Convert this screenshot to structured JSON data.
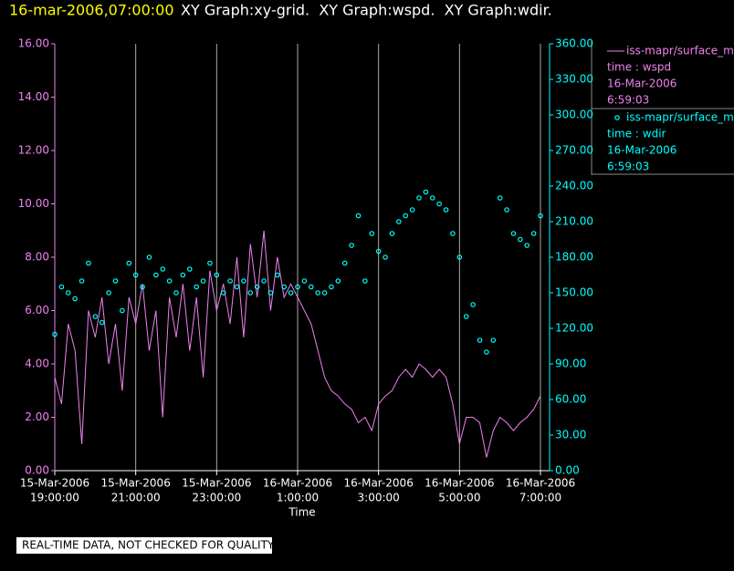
{
  "chart_data": {
    "type": "line",
    "title_time": "16-mar-2006,07:00:00",
    "title": "XY Graph:xy-grid.  XY Graph:wspd.  XY Graph:wdir.",
    "xlabel": "Time",
    "note": "REAL-TIME DATA, NOT CHECKED FOR QUALITY",
    "grid": true,
    "xlim": [
      "2006-03-15T19:00",
      "2006-03-16T07:00"
    ],
    "xticks": [
      {
        "value": "2006-03-15T19:00",
        "label": [
          "15-Mar-2006",
          "19:00:00"
        ]
      },
      {
        "value": "2006-03-15T21:00",
        "label": [
          "15-Mar-2006",
          "21:00:00"
        ]
      },
      {
        "value": "2006-03-15T23:00",
        "label": [
          "15-Mar-2006",
          "23:00:00"
        ]
      },
      {
        "value": "2006-03-16T01:00",
        "label": [
          "16-Mar-2006",
          "1:00:00"
        ]
      },
      {
        "value": "2006-03-16T03:00",
        "label": [
          "16-Mar-2006",
          "3:00:00"
        ]
      },
      {
        "value": "2006-03-16T05:00",
        "label": [
          "16-Mar-2006",
          "5:00:00"
        ]
      },
      {
        "value": "2006-03-16T07:00",
        "label": [
          "16-Mar-2006",
          "7:00:00"
        ]
      }
    ],
    "ylim": [
      0,
      16
    ],
    "yticks": [
      {
        "value": 0,
        "label": "0.00"
      },
      {
        "value": 2,
        "label": "2.00"
      },
      {
        "value": 4,
        "label": "4.00"
      },
      {
        "value": 6,
        "label": "6.00"
      },
      {
        "value": 8,
        "label": "8.00"
      },
      {
        "value": 10,
        "label": "10.00"
      },
      {
        "value": 12,
        "label": "12.00"
      },
      {
        "value": 14,
        "label": "14.00"
      },
      {
        "value": 16,
        "label": "16.00"
      }
    ],
    "y2lim": [
      0,
      360
    ],
    "y2ticks": [
      {
        "value": 0,
        "label": "0.00"
      },
      {
        "value": 30,
        "label": "30.00"
      },
      {
        "value": 60,
        "label": "60.00"
      },
      {
        "value": 90,
        "label": "90.00"
      },
      {
        "value": 120,
        "label": "120.00"
      },
      {
        "value": 150,
        "label": "150.00"
      },
      {
        "value": 180,
        "label": "180.00"
      },
      {
        "value": 210,
        "label": "210.00"
      },
      {
        "value": 240,
        "label": "240.00"
      },
      {
        "value": 270,
        "label": "270.00"
      },
      {
        "value": 300,
        "label": "300.00"
      },
      {
        "value": 330,
        "label": "330.00"
      },
      {
        "value": 360,
        "label": "360.00"
      }
    ],
    "x": [
      "2006-03-15T19:00",
      "2006-03-15T19:10",
      "2006-03-15T19:20",
      "2006-03-15T19:30",
      "2006-03-15T19:40",
      "2006-03-15T19:50",
      "2006-03-15T20:00",
      "2006-03-15T20:10",
      "2006-03-15T20:20",
      "2006-03-15T20:30",
      "2006-03-15T20:40",
      "2006-03-15T20:50",
      "2006-03-15T21:00",
      "2006-03-15T21:10",
      "2006-03-15T21:20",
      "2006-03-15T21:30",
      "2006-03-15T21:40",
      "2006-03-15T21:50",
      "2006-03-15T22:00",
      "2006-03-15T22:10",
      "2006-03-15T22:20",
      "2006-03-15T22:30",
      "2006-03-15T22:40",
      "2006-03-15T22:50",
      "2006-03-15T23:00",
      "2006-03-15T23:10",
      "2006-03-15T23:20",
      "2006-03-15T23:30",
      "2006-03-15T23:40",
      "2006-03-15T23:50",
      "2006-03-16T00:00",
      "2006-03-16T00:10",
      "2006-03-16T00:20",
      "2006-03-16T00:30",
      "2006-03-16T00:40",
      "2006-03-16T00:50",
      "2006-03-16T01:00",
      "2006-03-16T01:10",
      "2006-03-16T01:20",
      "2006-03-16T01:30",
      "2006-03-16T01:40",
      "2006-03-16T01:50",
      "2006-03-16T02:00",
      "2006-03-16T02:10",
      "2006-03-16T02:20",
      "2006-03-16T02:30",
      "2006-03-16T02:40",
      "2006-03-16T02:50",
      "2006-03-16T03:00",
      "2006-03-16T03:10",
      "2006-03-16T03:20",
      "2006-03-16T03:30",
      "2006-03-16T03:40",
      "2006-03-16T03:50",
      "2006-03-16T04:00",
      "2006-03-16T04:10",
      "2006-03-16T04:20",
      "2006-03-16T04:30",
      "2006-03-16T04:40",
      "2006-03-16T04:50",
      "2006-03-16T05:00",
      "2006-03-16T05:10",
      "2006-03-16T05:20",
      "2006-03-16T05:30",
      "2006-03-16T05:40",
      "2006-03-16T05:50",
      "2006-03-16T06:00",
      "2006-03-16T06:10",
      "2006-03-16T06:20",
      "2006-03-16T06:30",
      "2006-03-16T06:40",
      "2006-03-16T06:50",
      "2006-03-16T07:00"
    ],
    "series": [
      {
        "name": "iss-mapr/surface_m",
        "legend_text": [
          "time : wspd",
          "16-Mar-2006",
          "6:59:03"
        ],
        "color": "#ee82ee",
        "style": "line",
        "values": [
          3.5,
          2.5,
          5.5,
          4.5,
          1.0,
          6.0,
          5.0,
          6.5,
          4.0,
          5.5,
          3.0,
          6.5,
          5.5,
          7.0,
          4.5,
          6.0,
          2.0,
          6.5,
          5.0,
          7.0,
          4.5,
          6.5,
          3.5,
          7.5,
          6.0,
          7.0,
          5.5,
          8.0,
          5.0,
          8.5,
          6.5,
          9.0,
          6.0,
          8.0,
          6.5,
          7.0,
          6.5,
          6.0,
          5.5,
          4.5,
          3.5,
          3.0,
          2.8,
          2.5,
          2.3,
          1.8,
          2.0,
          1.5,
          2.5,
          2.8,
          3.0,
          3.5,
          3.8,
          3.5,
          4.0,
          3.8,
          3.5,
          3.8,
          3.5,
          2.5,
          1.0,
          2.0,
          2.0,
          1.8,
          0.5,
          1.5,
          2.0,
          1.8,
          1.5,
          1.8,
          2.0,
          2.3,
          2.8
        ]
      },
      {
        "name": "iss-mapr/surface_m",
        "legend_text": [
          "time : wdir",
          "16-Mar-2006",
          "6:59:03"
        ],
        "color": "#00ffff",
        "style": "points",
        "axis": "y2",
        "values": [
          115,
          155,
          150,
          145,
          160,
          175,
          130,
          125,
          150,
          160,
          135,
          175,
          165,
          155,
          180,
          165,
          170,
          160,
          150,
          165,
          170,
          155,
          160,
          175,
          165,
          150,
          160,
          155,
          160,
          150,
          155,
          160,
          150,
          165,
          155,
          150,
          155,
          160,
          155,
          150,
          150,
          155,
          160,
          175,
          190,
          215,
          160,
          200,
          185,
          180,
          200,
          210,
          215,
          220,
          230,
          235,
          230,
          225,
          220,
          200,
          180,
          130,
          140,
          110,
          100,
          110,
          230,
          220,
          200,
          195,
          190,
          200,
          215
        ]
      }
    ]
  }
}
